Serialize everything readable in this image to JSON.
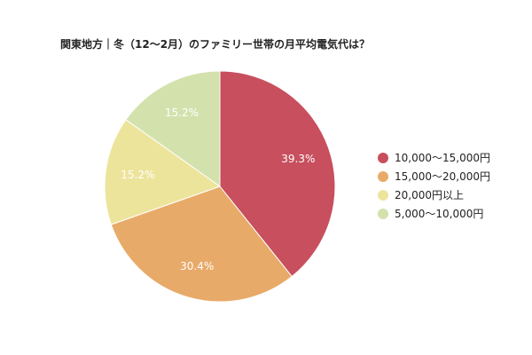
{
  "chart_data": {
    "type": "pie",
    "title": "関東地方｜冬（12〜2月）のファミリー世帯の月平均電気代は？",
    "slices": [
      {
        "label": "10,000〜15,000円",
        "value": 39.3,
        "value_label": "39.3%",
        "color": "#c84f5e"
      },
      {
        "label": "15,000〜20,000円",
        "value": 30.4,
        "value_label": "30.4%",
        "color": "#e8aa68"
      },
      {
        "label": "20,000円以上",
        "value": 15.2,
        "value_label": "15.2%",
        "color": "#ede49c"
      },
      {
        "label": "5,000〜10,000円",
        "value": 15.2,
        "value_label": "15.2%",
        "color": "#d3e2ad"
      }
    ],
    "legend_position": "right",
    "start_angle": "12 o'clock",
    "direction": "clockwise"
  }
}
